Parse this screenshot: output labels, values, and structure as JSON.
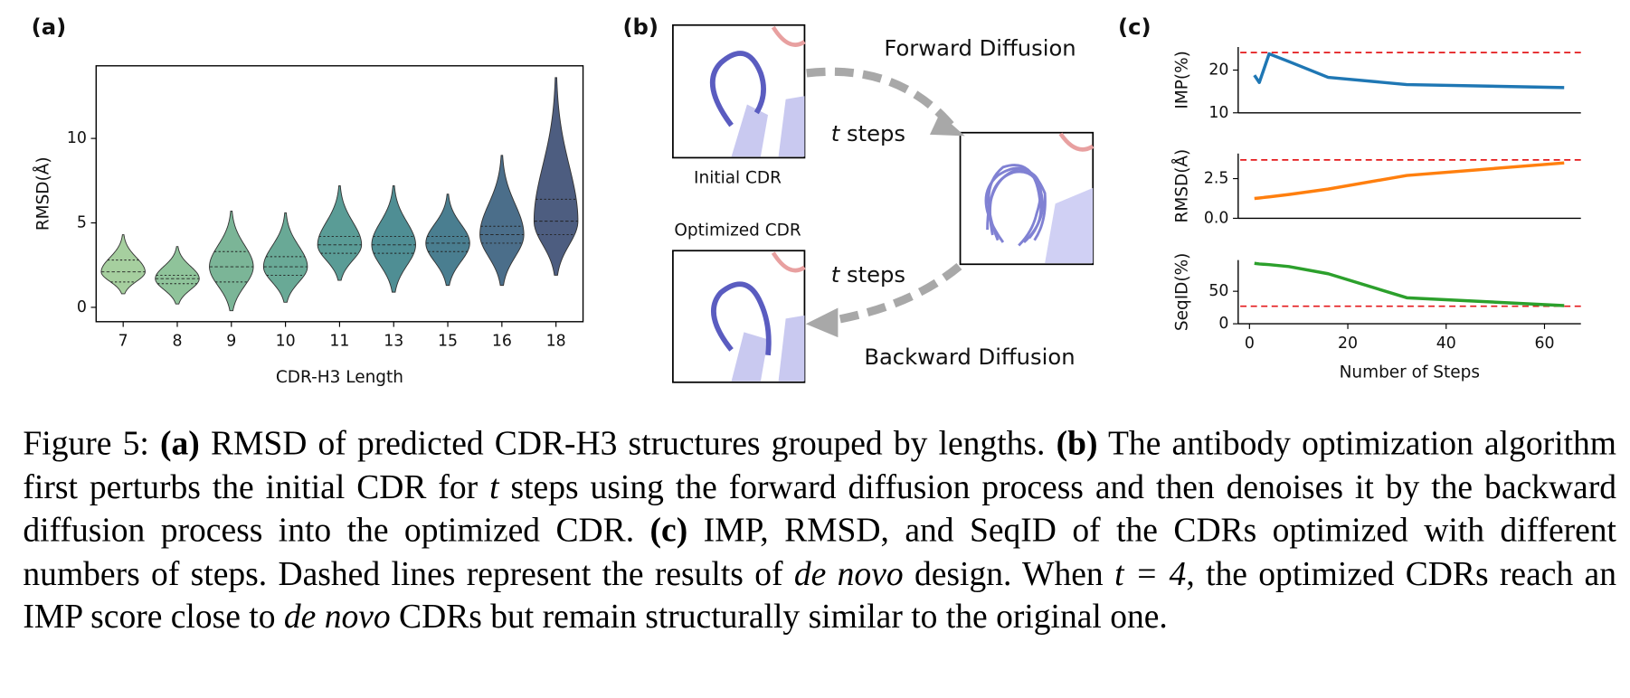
{
  "panels": [
    "(a)",
    "(b)",
    "(c)"
  ],
  "chart_data": [
    {
      "type": "violin",
      "categories": [
        "7",
        "8",
        "9",
        "10",
        "11",
        "13",
        "15",
        "16",
        "18"
      ],
      "colors": [
        "#a6cf9f",
        "#8fc39a",
        "#7bb597",
        "#69a996",
        "#5a9c96",
        "#4f8e94",
        "#4a7e90",
        "#4b6e8a",
        "#4d5d80"
      ],
      "min": [
        0.8,
        0.2,
        -0.2,
        0.3,
        1.6,
        0.9,
        1.3,
        1.3,
        1.9
      ],
      "q1": [
        1.5,
        1.4,
        1.5,
        1.9,
        3.2,
        3.2,
        3.3,
        3.8,
        4.3
      ],
      "median": [
        2.1,
        1.7,
        2.4,
        2.4,
        3.7,
        3.7,
        3.8,
        4.3,
        5.1
      ],
      "q3": [
        2.8,
        1.9,
        3.3,
        3.0,
        4.2,
        4.2,
        4.2,
        4.8,
        6.4
      ],
      "max": [
        4.3,
        3.6,
        5.7,
        5.6,
        7.2,
        7.2,
        6.7,
        9.0,
        13.6
      ],
      "ylim": [
        -0.85,
        14.3
      ],
      "yticks": [
        0,
        5,
        10
      ],
      "xlabel": "CDR-H3 Length",
      "ylabel": "RMSD(Å)"
    },
    {
      "type": "line",
      "x": [
        1,
        2,
        4,
        8,
        16,
        32,
        64
      ],
      "series": [
        {
          "color": "#1f77b4",
          "values": [
            18.8,
            17.1,
            23.8,
            22.0,
            18.3,
            16.6,
            15.9
          ]
        }
      ],
      "reference": {
        "value": 24.1,
        "color": "#e41a1c"
      },
      "ylabel": "IMP(%)",
      "ylim": [
        10,
        25.4
      ],
      "yticks": [
        10,
        20
      ],
      "xlim": [
        -2.3,
        67.4
      ]
    },
    {
      "type": "line",
      "x": [
        1,
        2,
        4,
        8,
        16,
        32,
        64
      ],
      "series": [
        {
          "color": "#ff7f0e",
          "values": [
            1.25,
            1.28,
            1.35,
            1.5,
            1.84,
            2.7,
            3.49
          ]
        }
      ],
      "reference": {
        "value": 3.68,
        "color": "#e41a1c"
      },
      "ylabel": "RMSD(Å)",
      "ylim": [
        0,
        4.08
      ],
      "yticks": [
        {
          "value": 0,
          "label": "0.0"
        },
        2.5
      ],
      "xlim": [
        -2.3,
        67.4
      ]
    },
    {
      "type": "line",
      "x": [
        1,
        2,
        4,
        8,
        16,
        32,
        64
      ],
      "series": [
        {
          "color": "#2ca02c",
          "values": [
            93,
            92,
            91,
            88,
            77,
            40,
            28
          ]
        }
      ],
      "reference": {
        "value": 27,
        "color": "#e41a1c"
      },
      "ylabel": "SeqID(%)",
      "ylim": [
        0,
        98
      ],
      "yticks": [
        0,
        50
      ],
      "xlim": [
        -2.3,
        67.4
      ],
      "xticks": [
        0,
        20,
        40,
        60
      ],
      "xlabel": "Number of Steps"
    }
  ],
  "diagram": {
    "initial": "Initial CDR",
    "optimized": "Optimized CDR",
    "forward": "Forward Diffusion",
    "backward": "Backward Diffusion",
    "t_var": "t",
    "steps": "steps"
  },
  "caption": [
    {
      "text": "Figure 5: "
    },
    {
      "text": "(a)",
      "bold": true
    },
    {
      "text": " RMSD of predicted CDR-H3 structures grouped by lengths. "
    },
    {
      "text": "(b)",
      "bold": true
    },
    {
      "text": " The antibody optimization algorithm first perturbs the initial CDR for "
    },
    {
      "text": "t",
      "italic": true
    },
    {
      "text": " steps using the forward diffusion process and then denoises it by the backward diffusion process into the optimized CDR. "
    },
    {
      "text": "(c)",
      "bold": true
    },
    {
      "text": " IMP, RMSD, and SeqID of the CDRs optimized with different numbers of steps. Dashed lines represent the results of "
    },
    {
      "text": "de novo",
      "italic": true
    },
    {
      "text": " design. When "
    },
    {
      "text": "t = 4",
      "italic": true
    },
    {
      "text": ", the optimized CDRs reach an IMP score close to "
    },
    {
      "text": "de novo",
      "italic": true
    },
    {
      "text": " CDRs but remain structurally similar to the original one."
    }
  ]
}
